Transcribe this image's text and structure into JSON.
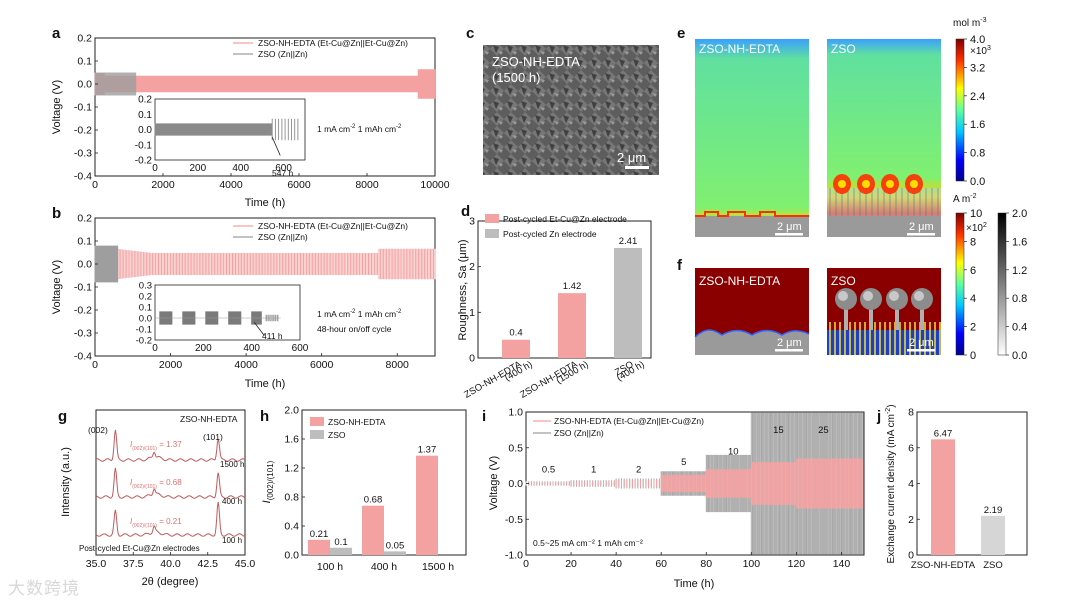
{
  "panel_letters": {
    "a": "a",
    "b": "b",
    "c": "c",
    "d": "d",
    "e": "e",
    "f": "f",
    "g": "g",
    "h": "h",
    "i": "i",
    "j": "j"
  },
  "colors": {
    "pink": "#f4a1a1",
    "gray": "#9e9e9e",
    "dark_gray": "#6e6e6e"
  },
  "panel_a": {
    "legend1": "ZSO-NH-EDTA (Et-Cu@Zn||Et-Cu@Zn)",
    "legend2": "ZSO (Zn||Zn)",
    "inset_note1": "1 mA cm",
    "inset_note2": "1 mAh cm",
    "sup": "-2",
    "inset_label": "547 h",
    "ylabel": "Voltage (V)",
    "xlabel": "Time (h)"
  },
  "panel_b": {
    "legend1": "ZSO-NH-EDTA (Et-Cu@Zn||Et-Cu@Zn)",
    "legend2": "ZSO (Zn||Zn)",
    "inset_note1": "1 mA cm",
    "inset_note2": "1 mAh cm",
    "inset_note3": "48-hour on/off cycle",
    "sup": "-2",
    "inset_label": "411 h",
    "ylabel": "Voltage (V)",
    "xlabel": "Time (h)"
  },
  "panel_c": {
    "title": "ZSO-NH-EDTA",
    "subtitle": "(1500 h)",
    "scale": "2 μm"
  },
  "panel_e": {
    "left": "ZSO-NH-EDTA",
    "right": "ZSO",
    "scale": "2 μm",
    "cbar_unit": "mol m",
    "cbar_unit_sup": "-3",
    "cbar_mult": "×10",
    "cbar_mult_sup": "3",
    "cbar_ticks": [
      "4.0",
      "3.2",
      "2.4",
      "1.6",
      "0.8",
      "0.0"
    ]
  },
  "panel_f": {
    "left": "ZSO-NH-EDTA",
    "right": "ZSO",
    "scale": "2 μm",
    "cbar_unit": "A m",
    "cbar_unit_sup": "-2",
    "cbar_mult": "×10",
    "cbar_mult_sup": "2",
    "cbar1_ticks": [
      "10",
      "8",
      "6",
      "4",
      "2",
      "0"
    ],
    "cbar2_ticks": [
      "2.0",
      "1.6",
      "1.2",
      "0.8",
      "0.4",
      "0.0"
    ]
  },
  "panel_g": {
    "label_002": "(002)",
    "label_101": "(101)",
    "sample": "ZSO-NH-EDTA",
    "ratios": [
      "= 1.37",
      "= 0.68",
      "= 0.21"
    ],
    "ratio_prefix": "I",
    "ratio_sub": "(002)/(101)",
    "times": [
      "1500 h",
      "400 h",
      "100 h"
    ],
    "footer": "Post-cycled Et-Cu@Zn electrodes",
    "ylabel": "Intensity (a.u.)",
    "xlabel": "2θ (degree)"
  },
  "panel_j": {
    "ylabel": "Exchange current density (mA cm",
    "ylabel_sup": "-2",
    "ylabel_end": ")"
  },
  "chart_data": [
    {
      "id": "a",
      "type": "line",
      "title": "",
      "xlabel": "Time (h)",
      "ylabel": "Voltage (V)",
      "xlim": [
        0,
        10000
      ],
      "ylim": [
        -0.4,
        0.2
      ],
      "xticks": [
        0,
        2000,
        4000,
        6000,
        8000,
        10000
      ],
      "yticks": [
        -0.4,
        -0.3,
        -0.2,
        -0.1,
        0.0,
        0.1,
        0.2
      ],
      "series": [
        {
          "name": "ZSO-NH-EDTA (Et-Cu@Zn||Et-Cu@Zn)",
          "color": "#f4a1a1",
          "x_end": 10000,
          "amplitude": 0.04
        },
        {
          "name": "ZSO (Zn||Zn)",
          "color": "#9e9e9e",
          "x_end": 1200,
          "amplitude": 0.05
        }
      ],
      "inset": {
        "xlim": [
          0,
          700
        ],
        "ylim": [
          -0.2,
          0.2
        ],
        "xticks": [
          0,
          200,
          400,
          600
        ],
        "yticks": [
          -0.2,
          -0.1,
          0.0,
          0.1,
          0.2
        ],
        "failure_h": 547
      }
    },
    {
      "id": "b",
      "type": "line",
      "xlabel": "Time (h)",
      "ylabel": "Voltage (V)",
      "xlim": [
        0,
        9000
      ],
      "ylim": [
        -0.4,
        0.2
      ],
      "xticks": [
        0,
        2000,
        4000,
        6000,
        8000
      ],
      "yticks": [
        -0.4,
        -0.3,
        -0.2,
        -0.1,
        0.0,
        0.1,
        0.2
      ],
      "series": [
        {
          "name": "ZSO-NH-EDTA (Et-Cu@Zn||Et-Cu@Zn)",
          "color": "#f4a1a1",
          "x_end": 9000,
          "amplitude": 0.06
        },
        {
          "name": "ZSO (Zn||Zn)",
          "color": "#9e9e9e",
          "x_end": 600,
          "amplitude": 0.08
        }
      ],
      "inset": {
        "xlim": [
          0,
          600
        ],
        "ylim": [
          -0.2,
          0.3
        ],
        "xticks": [
          0,
          200,
          400,
          600
        ],
        "yticks": [
          -0.2,
          -0.1,
          0.0,
          0.1,
          0.2,
          0.3
        ],
        "failure_h": 411
      }
    },
    {
      "id": "d",
      "type": "bar",
      "ylabel": "Roughness, Sa (μm)",
      "ylim": [
        0,
        3
      ],
      "yticks": [
        0,
        1,
        2,
        3
      ],
      "categories": [
        "ZSO-NH-EDTA\n(400 h)",
        "ZSO-NH-EDTA\n(1500 h)",
        "ZSO\n(400 h)"
      ],
      "values": [
        0.4,
        1.42,
        2.41
      ],
      "value_labels": [
        "0.4",
        "1.42",
        "2.41"
      ],
      "colors": [
        "#f4a1a1",
        "#f4a1a1",
        "#bdbdbd"
      ],
      "legend": [
        "Post-cycled Et-Cu@Zn electrode",
        "Post-cycled Zn electrode"
      ]
    },
    {
      "id": "h",
      "type": "bar",
      "ylabel": "I(002)/(101)",
      "ylim": [
        0,
        2.0
      ],
      "yticks": [
        0.0,
        0.4,
        0.8,
        1.2,
        1.6,
        2.0
      ],
      "categories": [
        "100 h",
        "400 h",
        "1500 h"
      ],
      "series": [
        {
          "name": "ZSO-NH-EDTA",
          "color": "#f4a1a1",
          "values": [
            0.21,
            0.68,
            1.37
          ]
        },
        {
          "name": "ZSO",
          "color": "#bdbdbd",
          "values": [
            0.1,
            0.05,
            null
          ]
        }
      ],
      "value_labels": [
        [
          "0.21",
          "0.68",
          "1.37"
        ],
        [
          "0.1",
          "0.05",
          ""
        ]
      ]
    },
    {
      "id": "i",
      "type": "line",
      "xlabel": "Time (h)",
      "ylabel": "Voltage (V)",
      "xlim": [
        0,
        150
      ],
      "ylim": [
        -1.0,
        1.0
      ],
      "xticks": [
        0,
        20,
        40,
        60,
        80,
        100,
        120,
        140
      ],
      "yticks": [
        -1.0,
        -0.5,
        0.0,
        0.5,
        1.0
      ],
      "rate_labels": [
        "0.5",
        "1",
        "2",
        "5",
        "10",
        "15",
        "25"
      ],
      "note": "0.5~25 mA cm⁻²  1 mAh cm⁻²",
      "series": [
        {
          "name": "ZSO-NH-EDTA (Et-Cu@Zn||Et-Cu@Zn)",
          "color": "#f4a1a1"
        },
        {
          "name": "ZSO (Zn||Zn)",
          "color": "#9e9e9e"
        }
      ]
    },
    {
      "id": "j",
      "type": "bar",
      "ylabel": "Exchange current density (mA cm⁻²)",
      "ylim": [
        0,
        8
      ],
      "yticks": [
        0,
        2,
        4,
        6,
        8
      ],
      "categories": [
        "ZSO-NH-EDTA",
        "ZSO"
      ],
      "values": [
        6.47,
        2.19
      ],
      "value_labels": [
        "6.47",
        "2.19"
      ],
      "colors": [
        "#f4a1a1",
        "#d6d6d6"
      ]
    },
    {
      "id": "g",
      "type": "line",
      "xlabel": "2θ (degree)",
      "ylabel": "Intensity (a.u.)",
      "xlim": [
        35.0,
        45.0
      ],
      "xticks": [
        35.0,
        37.5,
        40.0,
        42.5,
        45.0
      ]
    }
  ],
  "watermark": "大数跨境"
}
